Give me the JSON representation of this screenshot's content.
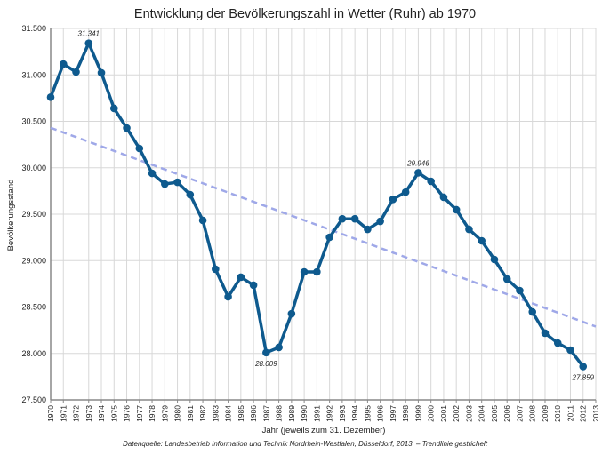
{
  "chart_data": {
    "type": "line",
    "title": "Entwicklung der Bevölkerungszahl in Wetter (Ruhr) ab 1970",
    "xlabel": "Jahr (jeweils zum 31. Dezember)",
    "ylabel": "Bevölkerungsstand",
    "source": "Datenquelle: Landesbetrieb Information und Technik Nordrhein-Westfalen, Düsseldorf, 2013. – Trendlinie gestrichelt",
    "xlim": [
      1970,
      2013
    ],
    "ylim": [
      27500,
      31500
    ],
    "yticks": [
      27500,
      28000,
      28500,
      29000,
      29500,
      30000,
      30500,
      31000,
      31500
    ],
    "ytick_labels": [
      "27.500",
      "28.000",
      "28.500",
      "29.000",
      "29.500",
      "30.000",
      "30.500",
      "31.000",
      "31.500"
    ],
    "grid": true,
    "series": [
      {
        "name": "Bevölkerungsstand",
        "color": "#0e5a8e",
        "x": [
          1970,
          1971,
          1972,
          1973,
          1974,
          1975,
          1976,
          1977,
          1978,
          1979,
          1980,
          1981,
          1982,
          1983,
          1984,
          1985,
          1986,
          1987,
          1988,
          1989,
          1990,
          1991,
          1992,
          1993,
          1994,
          1995,
          1996,
          1997,
          1998,
          1999,
          2000,
          2001,
          2002,
          2003,
          2004,
          2005,
          2006,
          2007,
          2008,
          2009,
          2010,
          2011,
          2012
        ],
        "values": [
          30760,
          31117,
          31031,
          31341,
          31022,
          30639,
          30428,
          30208,
          29940,
          29825,
          29844,
          29710,
          29433,
          28907,
          28610,
          28821,
          28735,
          28009,
          28065,
          28428,
          28878,
          28878,
          29251,
          29450,
          29450,
          29337,
          29423,
          29660,
          29738,
          29946,
          29854,
          29682,
          29548,
          29337,
          29213,
          29012,
          28801,
          28677,
          28447,
          28218,
          28112,
          28036,
          27859
        ]
      },
      {
        "name": "Trendlinie",
        "color": "#9fa8e8",
        "dashed": true,
        "x": [
          1970,
          2013
        ],
        "values": [
          30430,
          28290
        ]
      }
    ],
    "annotations": [
      {
        "x": 1973,
        "value": 31341,
        "label": "31.341",
        "position": "above"
      },
      {
        "x": 1987,
        "value": 28009,
        "label": "28.009",
        "position": "below"
      },
      {
        "x": 1999,
        "value": 29946,
        "label": "29.946",
        "position": "above"
      },
      {
        "x": 2012,
        "value": 27859,
        "label": "27.859",
        "position": "below"
      }
    ]
  }
}
